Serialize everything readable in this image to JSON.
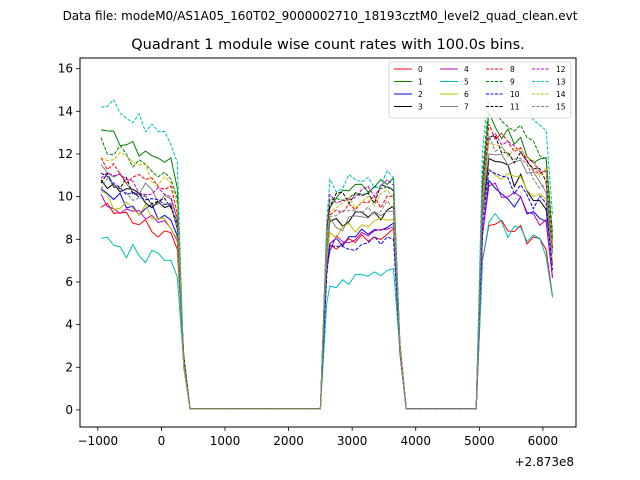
{
  "figure": {
    "suptitle": "Data file: modeM0/AS1A05_160T02_9000002710_18193cztM0_level2_quad_clean.evt",
    "offset_label": "+2.873e8"
  },
  "chart_data": {
    "type": "line",
    "title": "Quadrant 1 module wise count rates with 100.0s bins.",
    "xlabel": "",
    "ylabel": "",
    "xlim": [
      -1280,
      6520
    ],
    "ylim": [
      -0.8,
      16.5
    ],
    "x_offset": 287300000,
    "xticks": [
      -1000,
      0,
      1000,
      2000,
      3000,
      4000,
      5000,
      6000
    ],
    "xtick_labels": [
      "−1000",
      "0",
      "1000",
      "2000",
      "3000",
      "4000",
      "5000",
      "6000"
    ],
    "yticks": [
      0,
      2,
      4,
      6,
      8,
      10,
      12,
      14,
      16
    ],
    "ytick_labels": [
      "0",
      "2",
      "4",
      "6",
      "8",
      "10",
      "12",
      "14",
      "16"
    ],
    "grid": false,
    "legend_position": "top-right",
    "segments": [
      {
        "start": -950,
        "end": 150
      },
      {
        "start": 2650,
        "end": 3650
      },
      {
        "start": 5150,
        "end": 6150
      }
    ],
    "rise_after": [
      [
        2500,
        0.05
      ],
      [
        2600,
        0.1
      ]
    ],
    "series": [
      {
        "name": "0",
        "color": "#ff0000",
        "dash": false,
        "levels": [
          9.4,
          7.6,
          8.6
        ]
      },
      {
        "name": "1",
        "color": "#008000",
        "dash": false,
        "levels": [
          13.0,
          9.9,
          12.9
        ]
      },
      {
        "name": "2",
        "color": "#0000ff",
        "dash": false,
        "levels": [
          10.2,
          7.9,
          10.0
        ]
      },
      {
        "name": "3",
        "color": "#000000",
        "dash": false,
        "levels": [
          10.6,
          8.7,
          11.1
        ]
      },
      {
        "name": "4",
        "color": "#bf00bf",
        "dash": false,
        "levels": [
          9.9,
          7.8,
          10.0
        ]
      },
      {
        "name": "5",
        "color": "#00bfbf",
        "dash": false,
        "levels": [
          7.8,
          5.9,
          8.5
        ]
      },
      {
        "name": "6",
        "color": "#bfbf00",
        "dash": false,
        "levels": [
          10.0,
          8.2,
          11.0
        ]
      },
      {
        "name": "7",
        "color": "#808080",
        "dash": false,
        "levels": [
          11.2,
          8.6,
          11.8
        ]
      },
      {
        "name": "8",
        "color": "#ff0000",
        "dash": true,
        "levels": [
          11.5,
          9.3,
          12.4
        ]
      },
      {
        "name": "9",
        "color": "#008000",
        "dash": true,
        "levels": [
          12.4,
          9.7,
          13.5
        ]
      },
      {
        "name": "10",
        "color": "#0000ff",
        "dash": true,
        "levels": [
          10.7,
          7.4,
          10.6
        ]
      },
      {
        "name": "11",
        "color": "#000000",
        "dash": true,
        "levels": [
          11.0,
          9.7,
          12.2
        ]
      },
      {
        "name": "12",
        "color": "#bf00bf",
        "dash": true,
        "levels": [
          11.2,
          10.0,
          12.2
        ]
      },
      {
        "name": "13",
        "color": "#00bfbf",
        "dash": true,
        "levels": [
          14.5,
          10.4,
          14.8
        ]
      },
      {
        "name": "14",
        "color": "#bfbf00",
        "dash": true,
        "levels": [
          12.1,
          9.5,
          12.3
        ]
      },
      {
        "name": "15",
        "color": "#808080",
        "dash": true,
        "levels": [
          10.6,
          9.0,
          11.9
        ]
      }
    ]
  }
}
